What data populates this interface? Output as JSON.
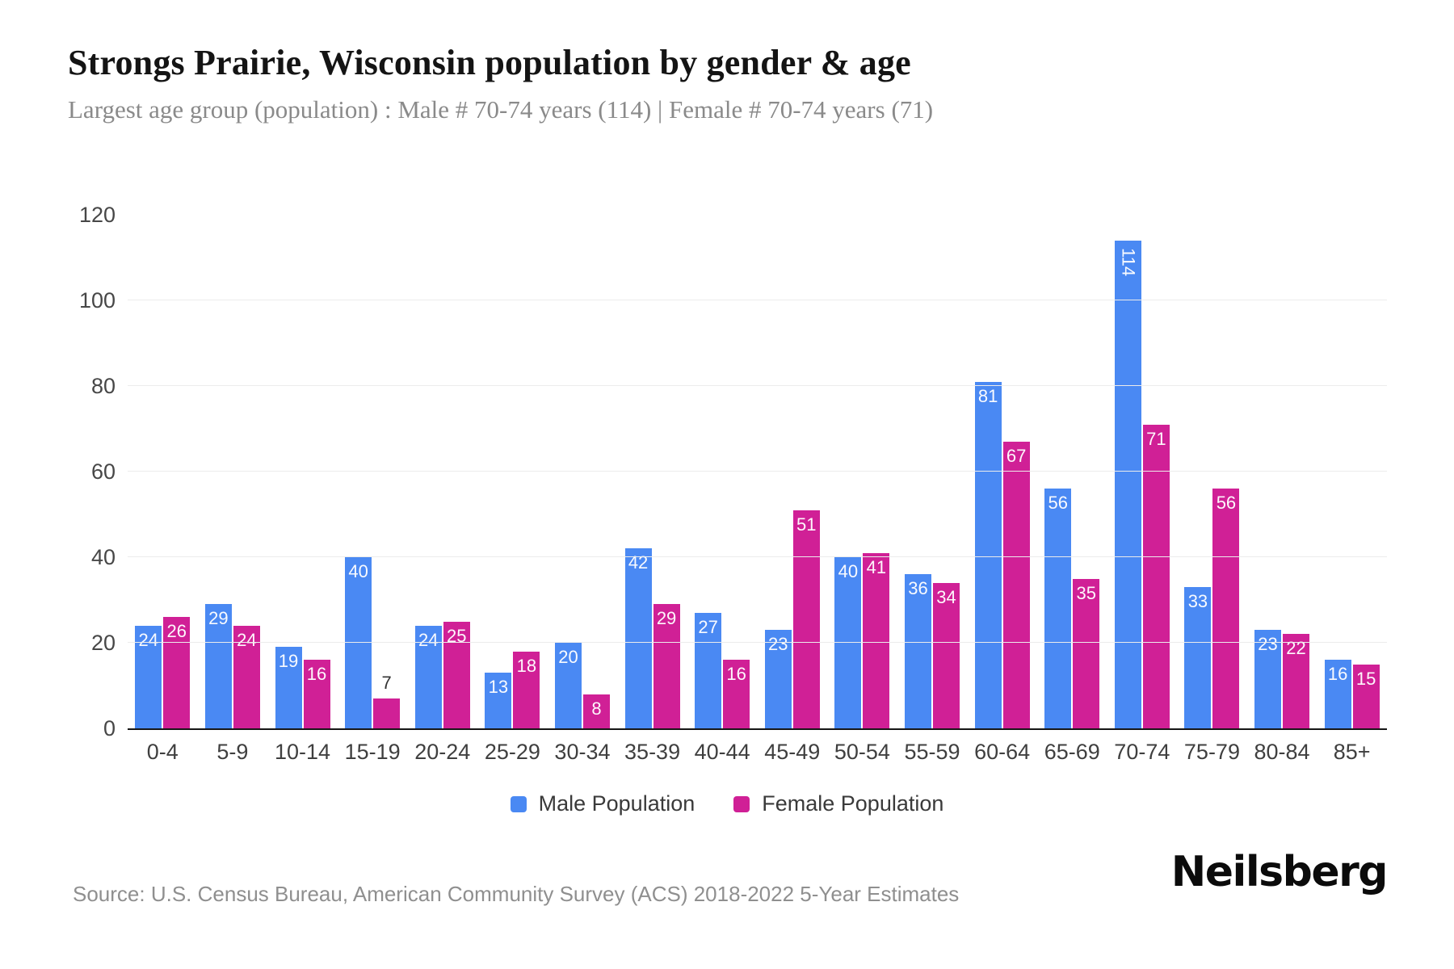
{
  "header": {
    "title": "Strongs Prairie, Wisconsin population by gender & age",
    "subtitle": "Largest age group (population) : Male # 70-74 years (114) | Female # 70-74 years (71)"
  },
  "chart_data": {
    "type": "bar",
    "title": "Strongs Prairie, Wisconsin population by gender & age",
    "xlabel": "",
    "ylabel": "",
    "categories": [
      "0-4",
      "5-9",
      "10-14",
      "15-19",
      "20-24",
      "25-29",
      "30-34",
      "35-39",
      "40-44",
      "45-49",
      "50-54",
      "55-59",
      "60-64",
      "65-69",
      "70-74",
      "75-79",
      "80-84",
      "85+"
    ],
    "series": [
      {
        "name": "Male Population",
        "color": "#4a89f3",
        "values": [
          24,
          29,
          19,
          40,
          24,
          13,
          20,
          42,
          27,
          23,
          40,
          36,
          81,
          56,
          114,
          33,
          23,
          16
        ]
      },
      {
        "name": "Female Population",
        "color": "#d02096",
        "values": [
          26,
          24,
          16,
          7,
          25,
          18,
          8,
          29,
          16,
          51,
          41,
          34,
          67,
          35,
          71,
          56,
          22,
          15
        ]
      }
    ],
    "ylim": [
      0,
      120
    ],
    "yticks": [
      0,
      20,
      40,
      60,
      80,
      100,
      120
    ],
    "grid": true,
    "legend_position": "bottom",
    "value_labels": true
  },
  "footer": {
    "source": "Source: U.S. Census Bureau, American Community Survey (ACS) 2018-2022 5-Year Estimates",
    "logo": "Neilsberg"
  }
}
